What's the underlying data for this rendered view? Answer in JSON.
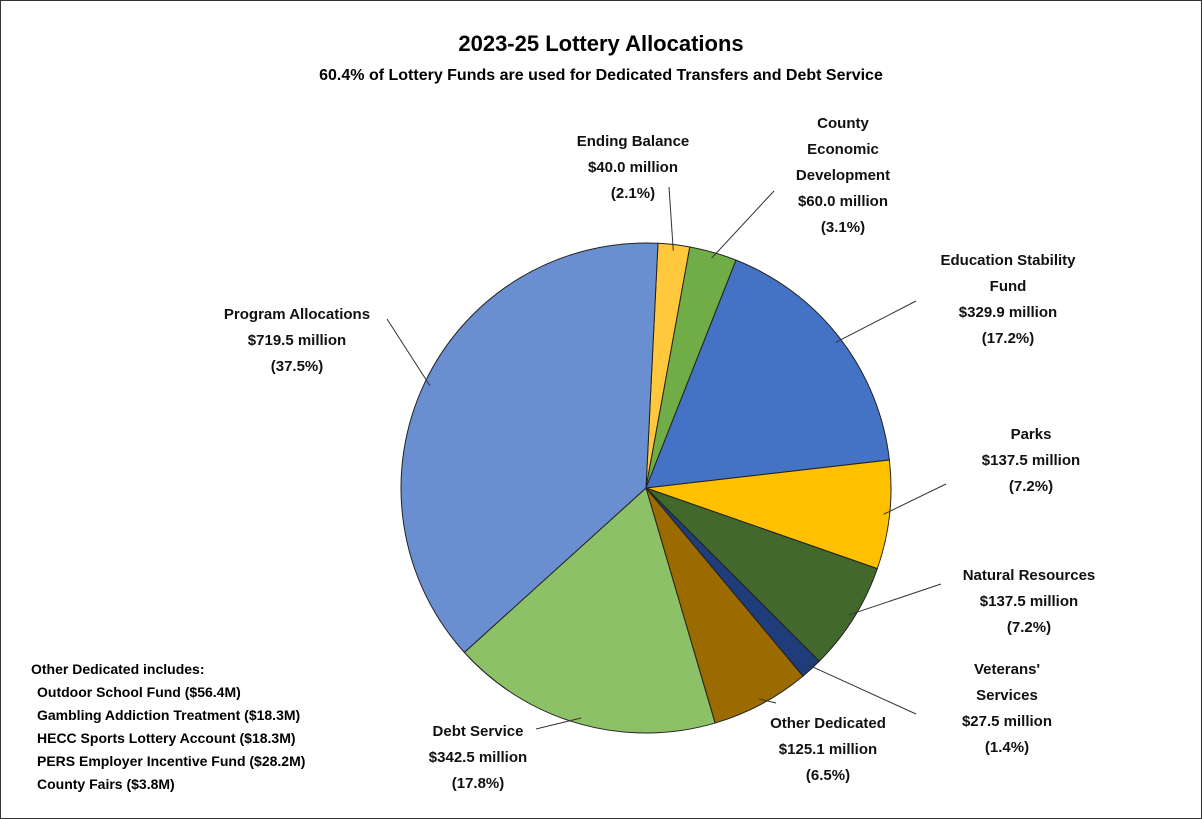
{
  "chart_data": {
    "type": "pie",
    "title": "2023-25 Lottery Allocations",
    "subtitle": "60.4% of Lottery Funds are used for Dedicated Transfers and Debt Service",
    "categories": [
      "Ending Balance",
      "County Economic Development",
      "Education Stability Fund",
      "Parks",
      "Natural Resources",
      "Veterans' Services",
      "Other Dedicated",
      "Debt Service",
      "Program Allocations"
    ],
    "values": [
      40.0,
      60.0,
      329.9,
      137.5,
      137.5,
      27.5,
      125.1,
      342.5,
      719.5
    ],
    "value_labels": [
      "$40.0 million",
      "$60.0 million",
      "$329.9 million",
      "$137.5 million",
      "$137.5 million",
      "$27.5 million",
      "$125.1 million",
      "$342.5 million",
      "$719.5 million"
    ],
    "percents": [
      2.1,
      3.1,
      17.2,
      7.2,
      7.2,
      1.4,
      6.5,
      17.8,
      37.5
    ],
    "percent_labels": [
      "(2.1%)",
      "(3.1%)",
      "(17.2%)",
      "(7.2%)",
      "(7.2%)",
      "(1.4%)",
      "(6.5%)",
      "(17.8%)",
      "(37.5%)"
    ],
    "colors": [
      "#ffc83d",
      "#70ad47",
      "#4472c4",
      "#ffc000",
      "#43682b",
      "#1f3d7a",
      "#9c6b00",
      "#8cc168",
      "#6a8fd0"
    ],
    "note_title": "Other Dedicated includes:",
    "notes": [
      "Outdoor School Fund ($56.4M)",
      "Gambling Addiction Treatment ($18.3M)",
      "HECC Sports Lottery Account ($18.3M)",
      "PERS Employer Incentive Fund ($28.2M)",
      "County Fairs ($3.8M)"
    ]
  }
}
